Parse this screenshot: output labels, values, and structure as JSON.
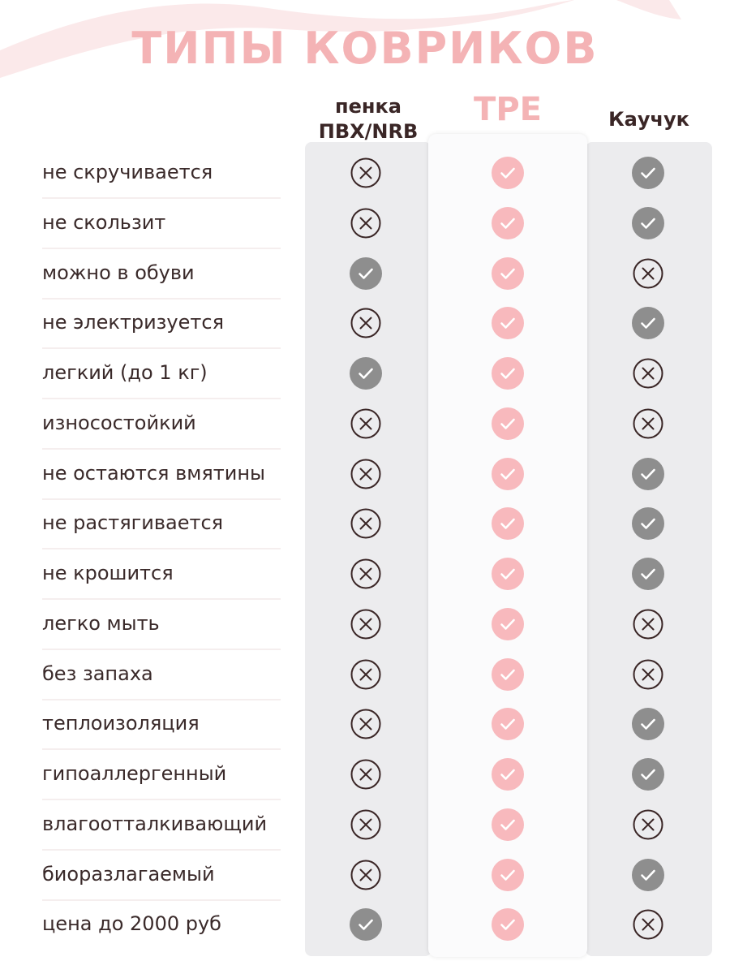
{
  "title": "ТИПЫ КОВРИКОВ",
  "columns": [
    {
      "key": "pvc",
      "label_line1": "пенка",
      "label_line2": "ПВХ/NRB"
    },
    {
      "key": "tpe",
      "label": "TPE"
    },
    {
      "key": "rubber",
      "label": "Каучук"
    }
  ],
  "colors": {
    "title": "#f4b3b5",
    "tpe_accent": "#f4b3b5",
    "check_gray": "#8e8e8e",
    "check_pink": "#f8b9bd",
    "cross_stroke": "#3a2626",
    "panel_bg": "#ececee",
    "text": "#3a2a2a"
  },
  "icons": {
    "yes": "check-circle-icon",
    "no": "cross-circle-icon"
  },
  "rows": [
    {
      "label": "не скручивается",
      "pvc": false,
      "tpe": true,
      "rubber": true
    },
    {
      "label": "не скользит",
      "pvc": false,
      "tpe": true,
      "rubber": true
    },
    {
      "label": "можно в обуви",
      "pvc": true,
      "tpe": true,
      "rubber": false
    },
    {
      "label": "не электризуется",
      "pvc": false,
      "tpe": true,
      "rubber": true
    },
    {
      "label": "легкий (до 1 кг)",
      "pvc": true,
      "tpe": true,
      "rubber": false
    },
    {
      "label": "износостойкий",
      "pvc": false,
      "tpe": true,
      "rubber": false
    },
    {
      "label": "не остаются вмятины",
      "pvc": false,
      "tpe": true,
      "rubber": true
    },
    {
      "label": "не растягивается",
      "pvc": false,
      "tpe": true,
      "rubber": true
    },
    {
      "label": "не крошится",
      "pvc": false,
      "tpe": true,
      "rubber": true
    },
    {
      "label": "легко мыть",
      "pvc": false,
      "tpe": true,
      "rubber": false
    },
    {
      "label": "без запаха",
      "pvc": false,
      "tpe": true,
      "rubber": false
    },
    {
      "label": "теплоизоляция",
      "pvc": false,
      "tpe": true,
      "rubber": true
    },
    {
      "label": "гипоаллергенный",
      "pvc": false,
      "tpe": true,
      "rubber": true
    },
    {
      "label": "влагоотталкивающий",
      "pvc": false,
      "tpe": true,
      "rubber": false
    },
    {
      "label": "биоразлагаемый",
      "pvc": false,
      "tpe": true,
      "rubber": true
    },
    {
      "label": "цена до 2000 руб",
      "pvc": true,
      "tpe": true,
      "rubber": false
    }
  ]
}
